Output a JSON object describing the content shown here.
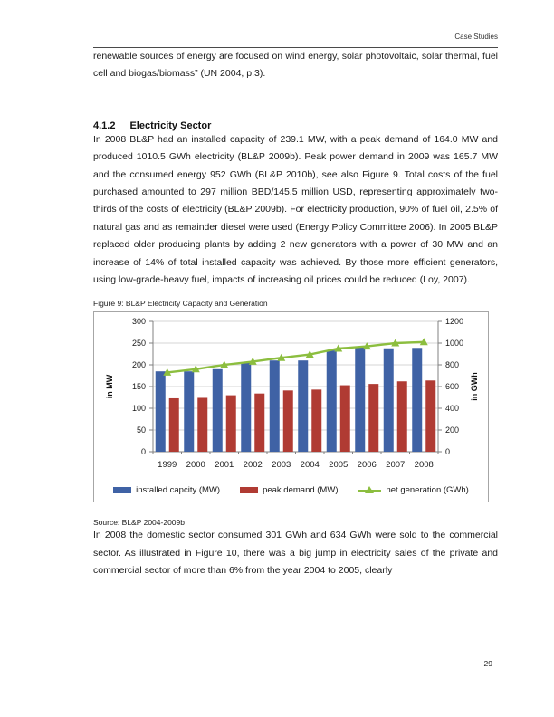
{
  "header": {
    "running_title": "Case Studies"
  },
  "paragraphs": {
    "p1": "renewable sources of energy are focused on wind energy, solar photovoltaic, solar thermal, fuel cell and biogas/biomass” (UN 2004, p.3).",
    "p2": "In 2008 BL&P had an installed capacity of 239.1 MW, with a peak demand of 164.0 MW and produced 1010.5 GWh electricity (BL&P 2009b). Peak power demand in 2009 was 165.7 MW and the consumed energy 952 GWh (BL&P 2010b), see also Figure 9. Total costs of the fuel purchased amounted to 297 million BBD/145.5 million USD, representing approximately two-thirds of the costs of electricity (BL&P 2009b). For electricity production, 90% of fuel oil, 2.5% of natural gas and as remainder diesel were used (Energy Policy Committee 2006). In 2005 BL&P replaced older producing plants by adding 2 new generators with a power of 30 MW and an increase of 14% of total installed capacity was achieved. By those more efficient generators, using low-grade-heavy fuel, impacts of increasing oil prices could be reduced (Loy, 2007).",
    "p3": "In 2008 the domestic sector consumed 301 GWh and 634 GWh were sold to the commercial sector. As illustrated in Figure 10, there was a big jump in electricity sales of the private and commercial sector of more than 6% from the year 2004 to 2005, clearly"
  },
  "section": {
    "number": "4.1.2",
    "title": "Electricity Sector"
  },
  "figure": {
    "caption": "Figure 9: BL&P Electricity Capacity and Generation",
    "source": "Source: BL&P 2004-2009b"
  },
  "footer": {
    "page_number": "29"
  },
  "chart_data": {
    "type": "bar",
    "subtype": "bar+line-dual-axis",
    "categories": [
      "1999",
      "2000",
      "2001",
      "2002",
      "2003",
      "2004",
      "2005",
      "2006",
      "2007",
      "2008"
    ],
    "series": [
      {
        "name": "installed capcity (MW)",
        "type": "bar",
        "axis": "left",
        "color": "#3f62a5",
        "values": [
          185,
          185,
          190,
          205,
          210,
          210,
          233,
          240,
          238,
          239
        ]
      },
      {
        "name": "peak demand (MW)",
        "type": "bar",
        "axis": "left",
        "color": "#b03b33",
        "values": [
          123,
          124,
          130,
          134,
          141,
          143,
          153,
          156,
          162,
          164
        ]
      },
      {
        "name": "net generation (GWh)",
        "type": "line",
        "axis": "right",
        "color": "#8cbe3f",
        "values": [
          730,
          760,
          800,
          830,
          865,
          895,
          950,
          970,
          1000,
          1010
        ]
      }
    ],
    "left_axis": {
      "title": "in MW",
      "min": 0,
      "max": 300,
      "step": 50,
      "ticks": [
        0,
        50,
        100,
        150,
        200,
        250,
        300
      ]
    },
    "right_axis": {
      "title": "in GWh",
      "min": 0,
      "max": 1200,
      "step": 200,
      "ticks": [
        0,
        200,
        400,
        600,
        800,
        1000,
        1200
      ]
    },
    "grid": true,
    "grid_color": "#d6d6d6",
    "axis_color": "#808080",
    "tick_label_color": "#1a1a1a",
    "legend_position": "bottom"
  }
}
